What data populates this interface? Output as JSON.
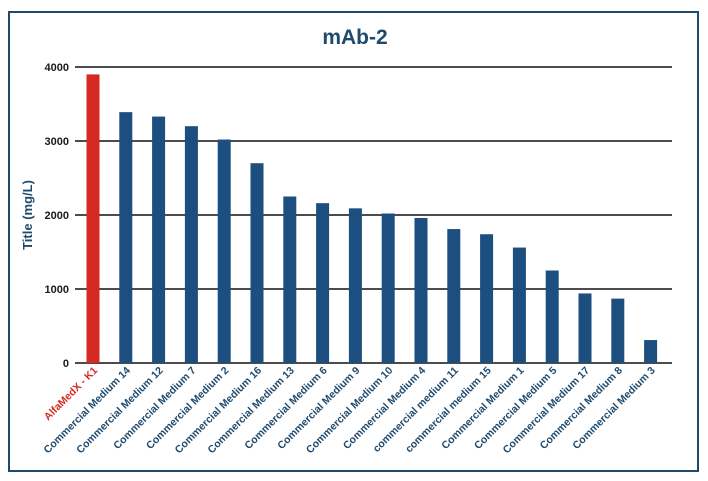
{
  "chart_data": {
    "type": "bar",
    "title": "mAb-2",
    "ylabel": "Title (mg/L)",
    "xlabel": "",
    "ylim": [
      0,
      4000
    ],
    "yticks": [
      0,
      1000,
      2000,
      3000,
      4000
    ],
    "grid": "horizontal",
    "categories": [
      "AlfaMedX - K1",
      "Commercial Medium 14",
      "Commercial Medium 12",
      "Commercial Medium 7",
      "Commercial Medium 2",
      "Commercial Medium 16",
      "Commercial Medium 13",
      "Commercial Medium 6",
      "Commercial Medium 9",
      "Commercial Medium 10",
      "Commercial Medium 4",
      "commercial medium 11",
      "commercial medium 15",
      "Commercial Medium 1",
      "Commercial Medium 5",
      "Commercial Medium 17",
      "Commercial Medium 8",
      "Commercial Medium 3"
    ],
    "values": [
      3900,
      3390,
      3330,
      3200,
      3020,
      2700,
      2250,
      2160,
      2090,
      2020,
      1960,
      1810,
      1740,
      1560,
      1250,
      940,
      870,
      310
    ],
    "colors": [
      "#d42a23",
      "#1c4f80",
      "#1c4f80",
      "#1c4f80",
      "#1c4f80",
      "#1c4f80",
      "#1c4f80",
      "#1c4f80",
      "#1c4f80",
      "#1c4f80",
      "#1c4f80",
      "#1c4f80",
      "#1c4f80",
      "#1c4f80",
      "#1c4f80",
      "#1c4f80",
      "#1c4f80",
      "#1c4f80"
    ],
    "label_colors": [
      "#d42a23",
      "#1e4a6e",
      "#1e4a6e",
      "#1e4a6e",
      "#1e4a6e",
      "#1e4a6e",
      "#1e4a6e",
      "#1e4a6e",
      "#1e4a6e",
      "#1e4a6e",
      "#1e4a6e",
      "#1e4a6e",
      "#1e4a6e",
      "#1e4a6e",
      "#1e4a6e",
      "#1e4a6e",
      "#1e4a6e",
      "#1e4a6e"
    ]
  }
}
